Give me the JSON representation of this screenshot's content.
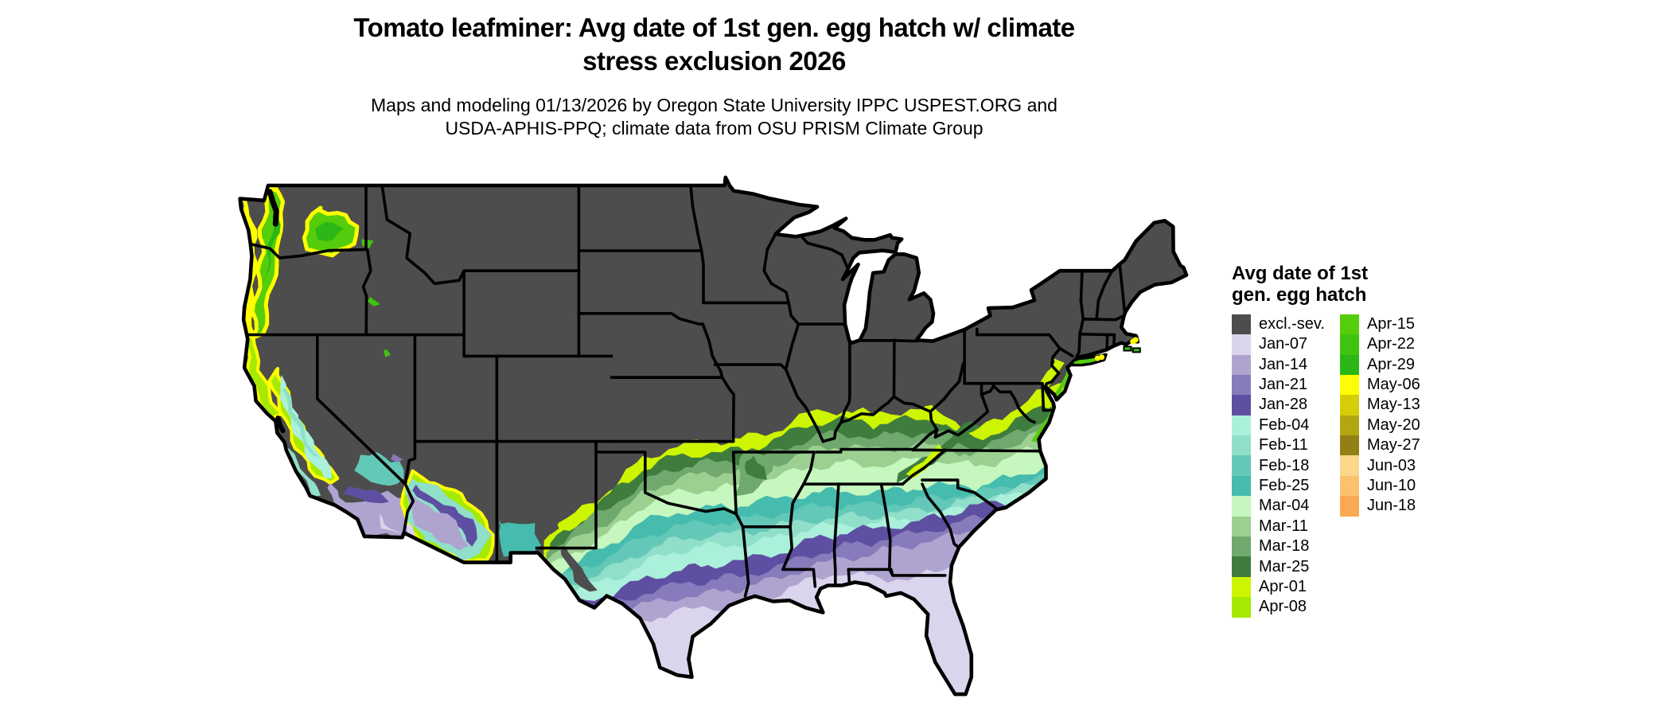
{
  "header": {
    "title_lines": [
      "Tomato leafminer: Avg date of 1st gen. egg hatch w/ climate",
      "stress exclusion 2026"
    ],
    "subtitle_lines": [
      "Maps and modeling 01/13/2026 by Oregon State University IPPC USPEST.ORG and",
      "USDA-APHIS-PPQ; climate data from OSU PRISM Climate Group"
    ]
  },
  "legend": {
    "title_lines": [
      "Avg date of 1st",
      "gen. egg hatch"
    ],
    "columns": [
      [
        {
          "label": "excl.-sev.",
          "color": "#4D4D4D"
        },
        {
          "label": "Jan-07",
          "color": "#DAD5EC"
        },
        {
          "label": "Jan-14",
          "color": "#AFA4CF"
        },
        {
          "label": "Jan-21",
          "color": "#887BBB"
        },
        {
          "label": "Jan-28",
          "color": "#5E4FA2"
        },
        {
          "label": "Feb-04",
          "color": "#ABF0DB"
        },
        {
          "label": "Feb-11",
          "color": "#8FDFC9"
        },
        {
          "label": "Feb-18",
          "color": "#63C8B8"
        },
        {
          "label": "Feb-25",
          "color": "#46BCAE"
        },
        {
          "label": "Mar-04",
          "color": "#C5F7BF"
        },
        {
          "label": "Mar-11",
          "color": "#9BD091"
        },
        {
          "label": "Mar-18",
          "color": "#70A96D"
        },
        {
          "label": "Mar-25",
          "color": "#3F7D3F"
        },
        {
          "label": "Apr-01",
          "color": "#CDF501"
        },
        {
          "label": "Apr-08",
          "color": "#A6EA04"
        }
      ],
      [
        {
          "label": "Apr-15",
          "color": "#55CC0C"
        },
        {
          "label": "Apr-22",
          "color": "#3FC310"
        },
        {
          "label": "Apr-29",
          "color": "#2BB716"
        },
        {
          "label": "May-06",
          "color": "#FEFE00"
        },
        {
          "label": "May-13",
          "color": "#D5CD08"
        },
        {
          "label": "May-20",
          "color": "#B2A711"
        },
        {
          "label": "May-27",
          "color": "#938015"
        },
        {
          "label": "Jun-03",
          "color": "#FAD78A"
        },
        {
          "label": "Jun-10",
          "color": "#FBC16C"
        },
        {
          "label": "Jun-18",
          "color": "#FAA953"
        }
      ]
    ]
  },
  "map": {
    "background_color": "#FFFFFF",
    "excluded_color": "#4D4D4D",
    "state_border_color": "#000000",
    "water_color": "#FFFFFF"
  }
}
